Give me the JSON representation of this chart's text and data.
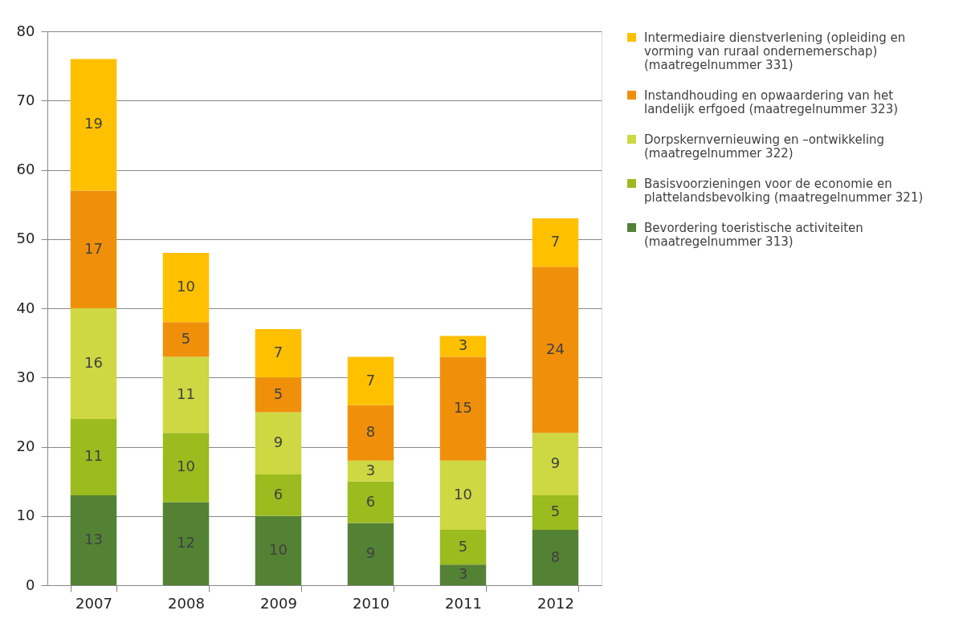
{
  "chart_data": {
    "type": "bar",
    "stacked": true,
    "categories": [
      "2007",
      "2008",
      "2009",
      "2010",
      "2011",
      "2012"
    ],
    "series": [
      {
        "name": "Bevordering toeristische activiteiten (maatregelnummer 313)",
        "color": "#548235",
        "values": [
          13,
          12,
          10,
          9,
          3,
          8
        ]
      },
      {
        "name": "Basisvoorzieningen voor de economie en plattelandsbevolking (maatregelnummer 321)",
        "color": "#9bbb1f",
        "values": [
          11,
          10,
          6,
          6,
          5,
          5
        ]
      },
      {
        "name": "Dorpskernvernieuwing en –ontwikkeling (maatregelnummer 322)",
        "color": "#cdd843",
        "values": [
          16,
          11,
          9,
          3,
          10,
          9
        ]
      },
      {
        "name": "Instandhouding en opwaardering van het landelijk erfgoed (maatregelnummer 323)",
        "color": "#f0900a",
        "values": [
          17,
          5,
          5,
          8,
          15,
          24
        ]
      },
      {
        "name": "Intermediaire dienstverlening (opleiding en vorming van ruraal ondernemerschap) (maatregelnummer 331)",
        "color": "#ffc000",
        "values": [
          19,
          10,
          7,
          7,
          3,
          7
        ]
      }
    ],
    "ylim": [
      0,
      80
    ],
    "yticks": [
      0,
      10,
      20,
      30,
      40,
      50,
      60,
      70,
      80
    ],
    "grid": "y",
    "legend": "right",
    "data_labels": true
  }
}
